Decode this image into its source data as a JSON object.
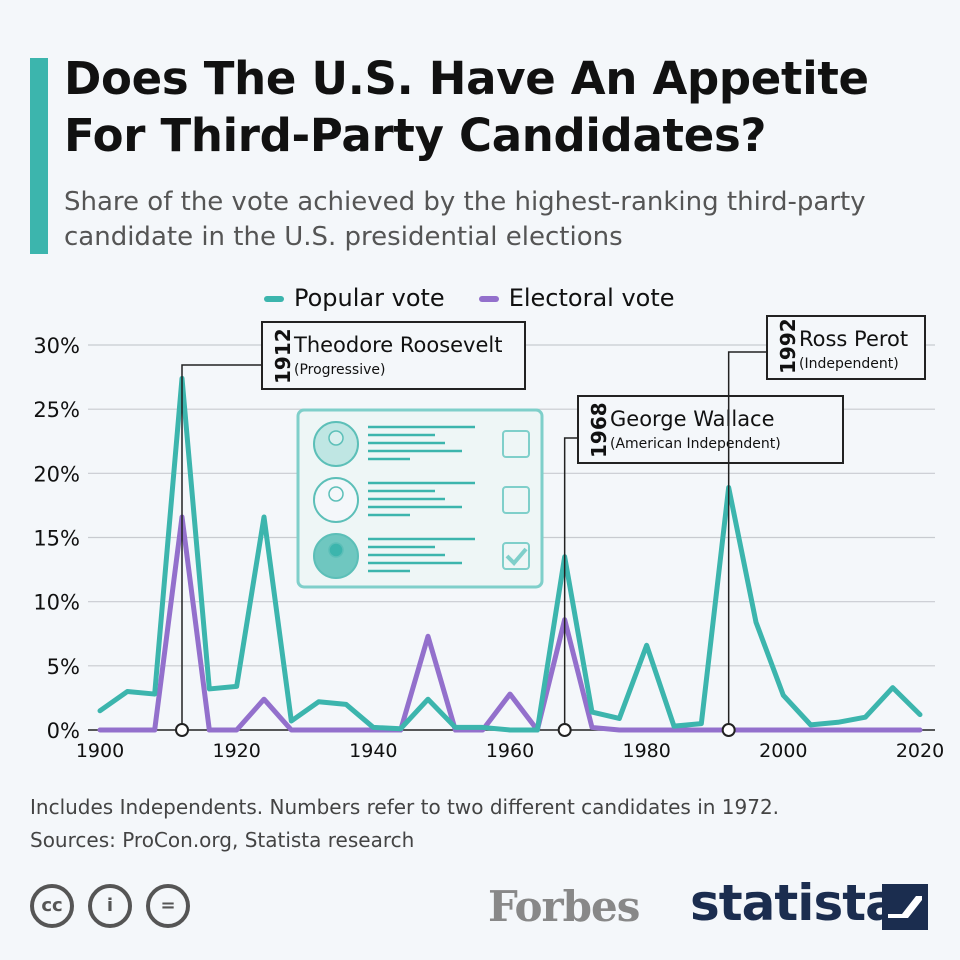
{
  "header": {
    "title": "Does The U.S. Have An Appetite For Third-Party Candidates?",
    "subtitle": "Share of the vote achieved by the highest-ranking third-party candidate in the U.S. presidential elections"
  },
  "chart_data": {
    "type": "line",
    "title": "",
    "xlabel": "",
    "ylabel": "",
    "x": [
      1900,
      1904,
      1908,
      1912,
      1916,
      1920,
      1924,
      1928,
      1932,
      1936,
      1940,
      1944,
      1948,
      1952,
      1956,
      1960,
      1964,
      1968,
      1972,
      1976,
      1980,
      1984,
      1988,
      1992,
      1996,
      2000,
      2004,
      2008,
      2012,
      2016,
      2020
    ],
    "series": [
      {
        "name": "Popular vote",
        "color": "#3cb5ad",
        "values": [
          1.5,
          3.0,
          2.8,
          27.4,
          3.2,
          3.4,
          16.6,
          0.7,
          2.2,
          2.0,
          0.2,
          0.1,
          2.4,
          0.2,
          0.2,
          0.0,
          0.0,
          13.5,
          1.4,
          0.9,
          6.6,
          0.3,
          0.5,
          18.9,
          8.4,
          2.7,
          0.4,
          0.6,
          1.0,
          3.3,
          1.2
        ]
      },
      {
        "name": "Electoral vote",
        "color": "#9370cc",
        "values": [
          0,
          0,
          0,
          16.6,
          0,
          0,
          2.4,
          0,
          0,
          0,
          0,
          0,
          7.3,
          0,
          0,
          2.8,
          0,
          8.6,
          0.2,
          0,
          0,
          0,
          0,
          0,
          0,
          0,
          0,
          0,
          0,
          0,
          0
        ]
      }
    ],
    "xticks": [
      "1900",
      "1920",
      "1940",
      "1960",
      "1980",
      "2000",
      "2020"
    ],
    "yticks": [
      "0%",
      "5%",
      "10%",
      "15%",
      "20%",
      "25%",
      "30%"
    ],
    "xlim": [
      1900,
      2020
    ],
    "ylim": [
      0,
      30
    ],
    "grid": true,
    "legend": "top",
    "annotations": [
      {
        "year": "1912",
        "name": "Theodore Roosevelt",
        "party": "(Progressive)"
      },
      {
        "year": "1968",
        "name": "George Wallace",
        "party": "(American Independent)"
      },
      {
        "year": "1992",
        "name": "Ross Perot",
        "party": "(Independent)"
      }
    ]
  },
  "footer": {
    "note": "Includes Independents. Numbers refer to two different candidates in 1972.",
    "sources": "Sources: ProCon.org, Statista research"
  },
  "branding": {
    "forbes": "Forbes",
    "statista": "statista",
    "license_icons": [
      "cc-icon",
      "attribution-icon",
      "no-derivatives-icon"
    ]
  }
}
